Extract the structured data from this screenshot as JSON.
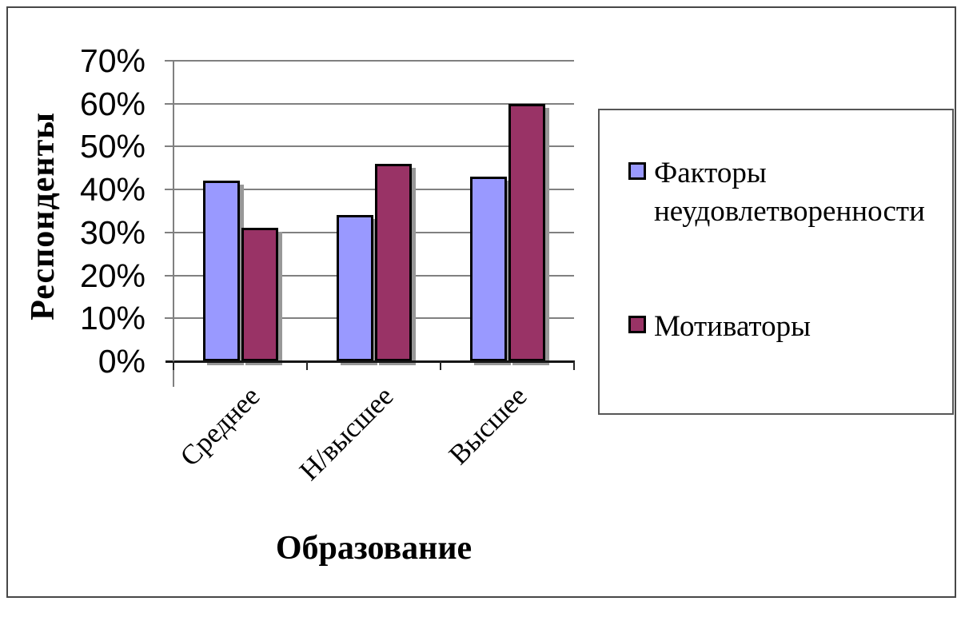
{
  "chart_data": {
    "type": "bar",
    "title": "",
    "categories": [
      "Среднее",
      "Н/высшее",
      "Высшее"
    ],
    "series": [
      {
        "name": "Факторы неудовлетворенности",
        "color": "#9999ff",
        "values": [
          42,
          34,
          43
        ]
      },
      {
        "name": "Мотиваторы",
        "color": "#993366",
        "values": [
          31,
          46,
          60
        ]
      }
    ],
    "xlabel": "Образование",
    "ylabel": "Респонденты",
    "ylim": [
      0,
      70
    ],
    "ytick_step": 10,
    "yticks": [
      "0%",
      "10%",
      "20%",
      "30%",
      "40%",
      "50%",
      "60%",
      "70%"
    ],
    "grid": true,
    "legend_position": "right",
    "grid_color": "#808080",
    "bar_border_color": "#000000"
  }
}
